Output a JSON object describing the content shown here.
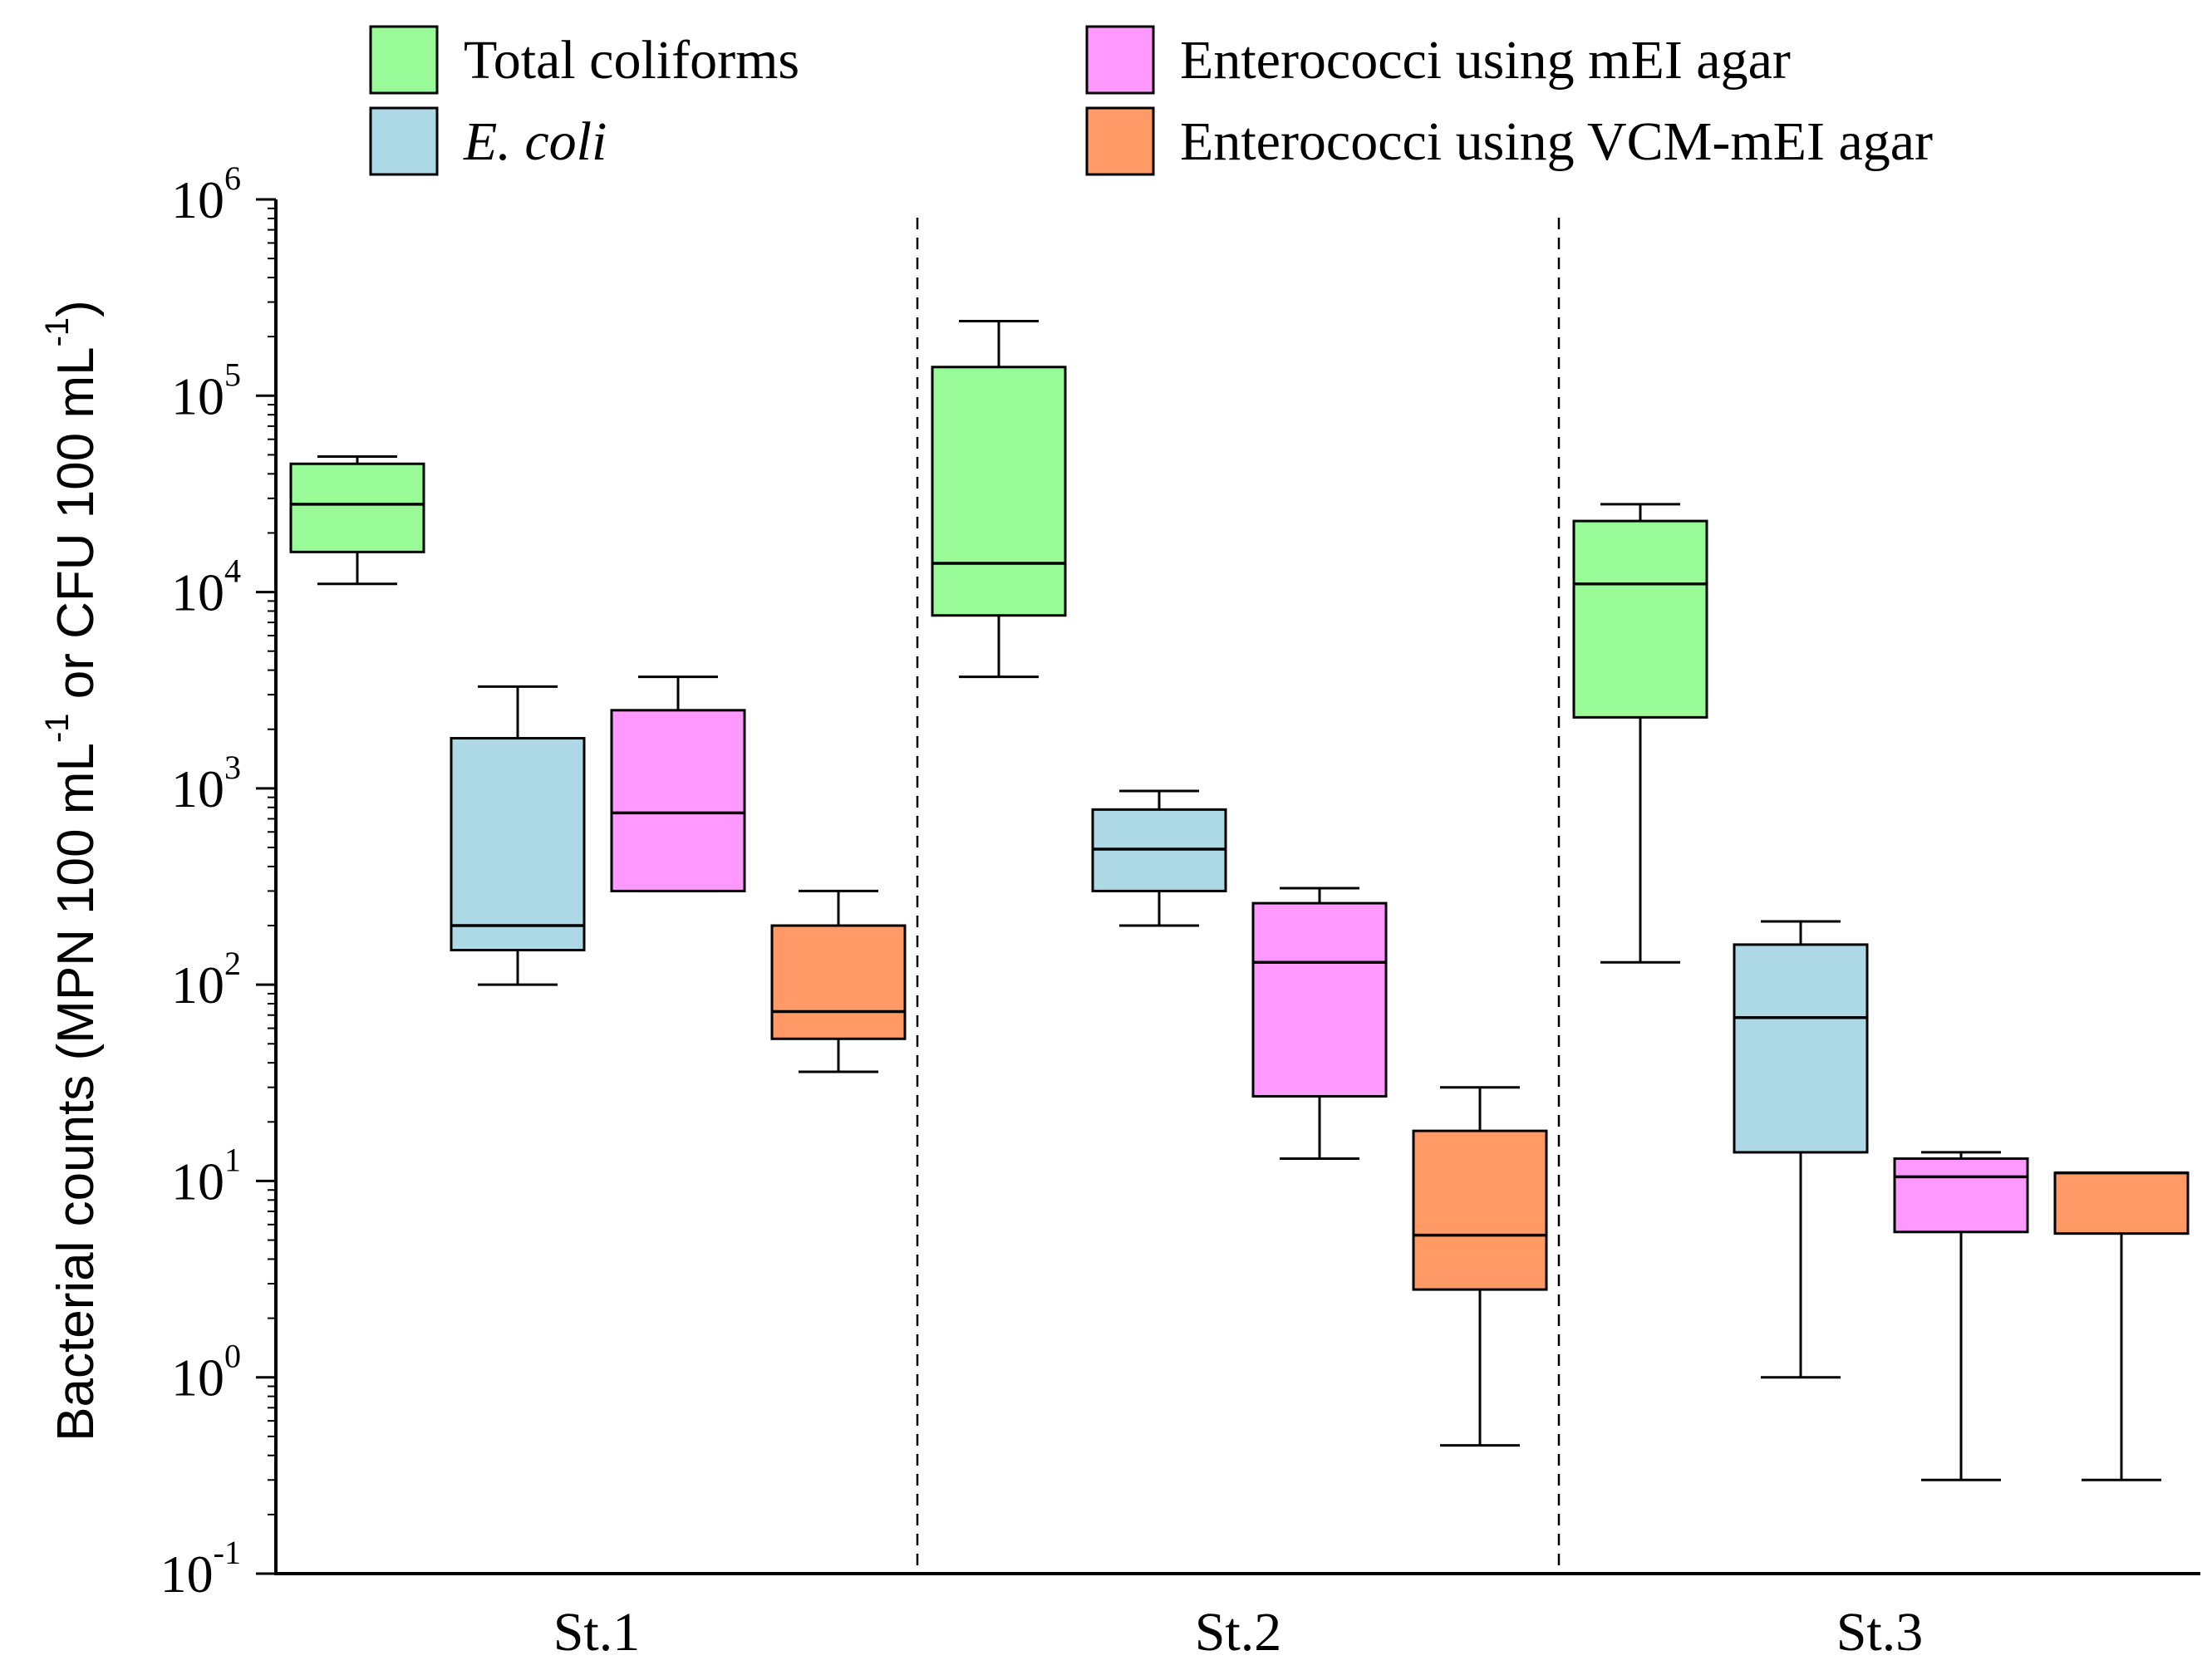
{
  "chart_data": {
    "type": "boxplot",
    "title": "",
    "xlabel": "",
    "ylabel": "Bacterial counts (MPN 100 mL-1 or CFU 100 mL-1)",
    "ylabel_parts": [
      "Bacterial counts (MPN 100 mL",
      "-1",
      " or CFU 100 mL",
      "-1",
      ")"
    ],
    "yscale": "log10",
    "ylim": [
      0.1,
      1000000
    ],
    "yticks": [
      {
        "base": "10",
        "exp": "-1",
        "value": 0.1
      },
      {
        "base": "10",
        "exp": "0",
        "value": 1
      },
      {
        "base": "10",
        "exp": "1",
        "value": 10
      },
      {
        "base": "10",
        "exp": "2",
        "value": 100
      },
      {
        "base": "10",
        "exp": "3",
        "value": 1000
      },
      {
        "base": "10",
        "exp": "4",
        "value": 10000
      },
      {
        "base": "10",
        "exp": "5",
        "value": 100000
      },
      {
        "base": "10",
        "exp": "6",
        "value": 1000000
      }
    ],
    "categories": [
      "St.1",
      "St.2",
      "St.3"
    ],
    "legend": {
      "position": "top",
      "columns": 2
    },
    "series": [
      {
        "name": "Total coliforms",
        "italic": false,
        "color": "#98FB98",
        "boxes": [
          {
            "min": 11000,
            "q1": 16000,
            "median": 28000,
            "q3": 45000,
            "max": 49000
          },
          {
            "min": 3700,
            "q1": 7600,
            "median": 14000,
            "q3": 140000,
            "max": 240000
          },
          {
            "min": 130,
            "q1": 2300,
            "median": 11000,
            "q3": 23000,
            "max": 28000
          }
        ]
      },
      {
        "name": "E. coli",
        "italic": true,
        "color": "#ADD8E6",
        "boxes": [
          {
            "min": 100,
            "q1": 150,
            "median": 200,
            "q3": 1800,
            "max": 3300
          },
          {
            "min": 200,
            "q1": 300,
            "median": 490,
            "q3": 780,
            "max": 970
          },
          {
            "min": 1,
            "q1": 14,
            "median": 68,
            "q3": 160,
            "max": 210
          }
        ]
      },
      {
        "name": "Enterococci using mEI agar",
        "italic": false,
        "color": "#FF99FF",
        "boxes": [
          {
            "min": 300,
            "q1": 300,
            "median": 750,
            "q3": 2500,
            "max": 3700
          },
          {
            "min": 13,
            "q1": 27,
            "median": 130,
            "q3": 260,
            "max": 310
          },
          {
            "min": 0.3,
            "q1": 5.5,
            "median": 10.5,
            "q3": 13,
            "max": 14
          }
        ]
      },
      {
        "name": "Enterococci using VCM-mEI agar",
        "italic": false,
        "color": "#FF9966",
        "boxes": [
          {
            "min": 36,
            "q1": 53,
            "median": 73,
            "q3": 200,
            "max": 300
          },
          {
            "min": 0.45,
            "q1": 2.8,
            "median": 5.3,
            "q3": 18,
            "max": 30
          },
          {
            "min": 0.3,
            "q1": 5.4,
            "median": 11,
            "q3": 11,
            "max": 11
          }
        ]
      }
    ]
  }
}
